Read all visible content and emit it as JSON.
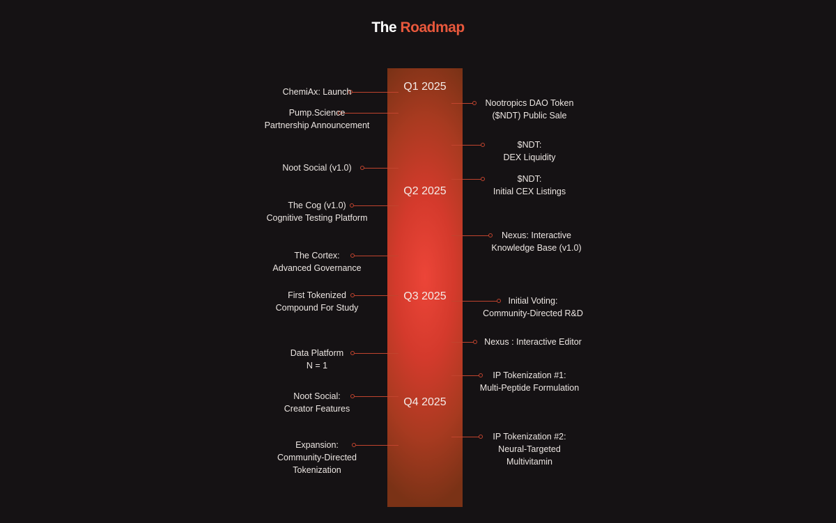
{
  "title": {
    "part1": "The",
    "part2": "Roadmap"
  },
  "quarters": [
    "Q1 2025",
    "Q2 2025",
    "Q3 2025",
    "Q4 2025"
  ],
  "left": [
    {
      "lines": [
        "ChemiAx: Launch"
      ]
    },
    {
      "lines": [
        "Pump.Science",
        "Partnership Announcement"
      ]
    },
    {
      "lines": [
        "Noot Social (v1.0)"
      ]
    },
    {
      "lines": [
        "The Cog (v1.0)",
        "Cognitive Testing Platform"
      ]
    },
    {
      "lines": [
        "The Cortex:",
        "Advanced Governance"
      ]
    },
    {
      "lines": [
        "First Tokenized",
        "Compound For Study"
      ]
    },
    {
      "lines": [
        "Data Platform",
        "N = 1"
      ]
    },
    {
      "lines": [
        "Noot Social:",
        "Creator Features"
      ]
    },
    {
      "lines": [
        "Expansion:",
        "Community-Directed",
        "Tokenization"
      ]
    }
  ],
  "right": [
    {
      "lines": [
        "Nootropics  DAO Token",
        "($NDT) Public Sale"
      ]
    },
    {
      "lines": [
        "$NDT:",
        "DEX Liquidity"
      ]
    },
    {
      "lines": [
        "$NDT:",
        "Initial CEX Listings"
      ]
    },
    {
      "lines": [
        "Nexus: Interactive",
        "Knowledge Base (v1.0)"
      ]
    },
    {
      "lines": [
        "Initial Voting:",
        "Community-Directed R&D"
      ]
    },
    {
      "lines": [
        "Nexus : Interactive Editor"
      ]
    },
    {
      "lines": [
        "IP Tokenization #1:",
        "Multi-Peptide Formulation"
      ]
    },
    {
      "lines": [
        "IP Tokenization  #2:",
        "Neural-Targeted",
        "Multivitamin"
      ]
    }
  ]
}
